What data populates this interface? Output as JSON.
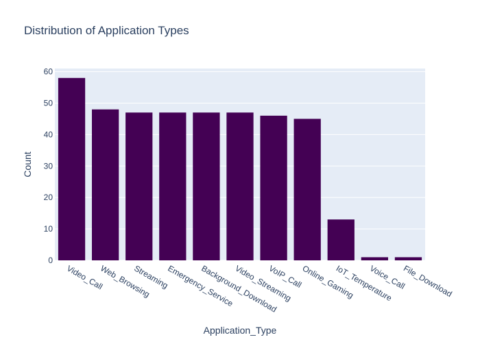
{
  "chart_data": {
    "type": "bar",
    "title": "Distribution of Application Types",
    "xlabel": "Application_Type",
    "ylabel": "Count",
    "categories": [
      "Video_Call",
      "Web_Browsing",
      "Streaming",
      "Emergency_Service",
      "Background_Download",
      "Video_Streaming",
      "VoIP_Call",
      "Online_Gaming",
      "IoT_Temperature",
      "Voice_Call",
      "File_Download"
    ],
    "values": [
      58,
      48,
      47,
      47,
      47,
      47,
      46,
      45,
      13,
      1,
      1
    ],
    "ylim": [
      0,
      61
    ],
    "yticks": [
      0,
      10,
      20,
      30,
      40,
      50,
      60
    ],
    "grid": true,
    "legend": "none",
    "colors": {
      "bar": "#440154",
      "plot_background": "#e5ecf6",
      "gridline": "#ffffff",
      "text": "#2a3f5f",
      "tick_text": "#2a3f5f"
    }
  }
}
